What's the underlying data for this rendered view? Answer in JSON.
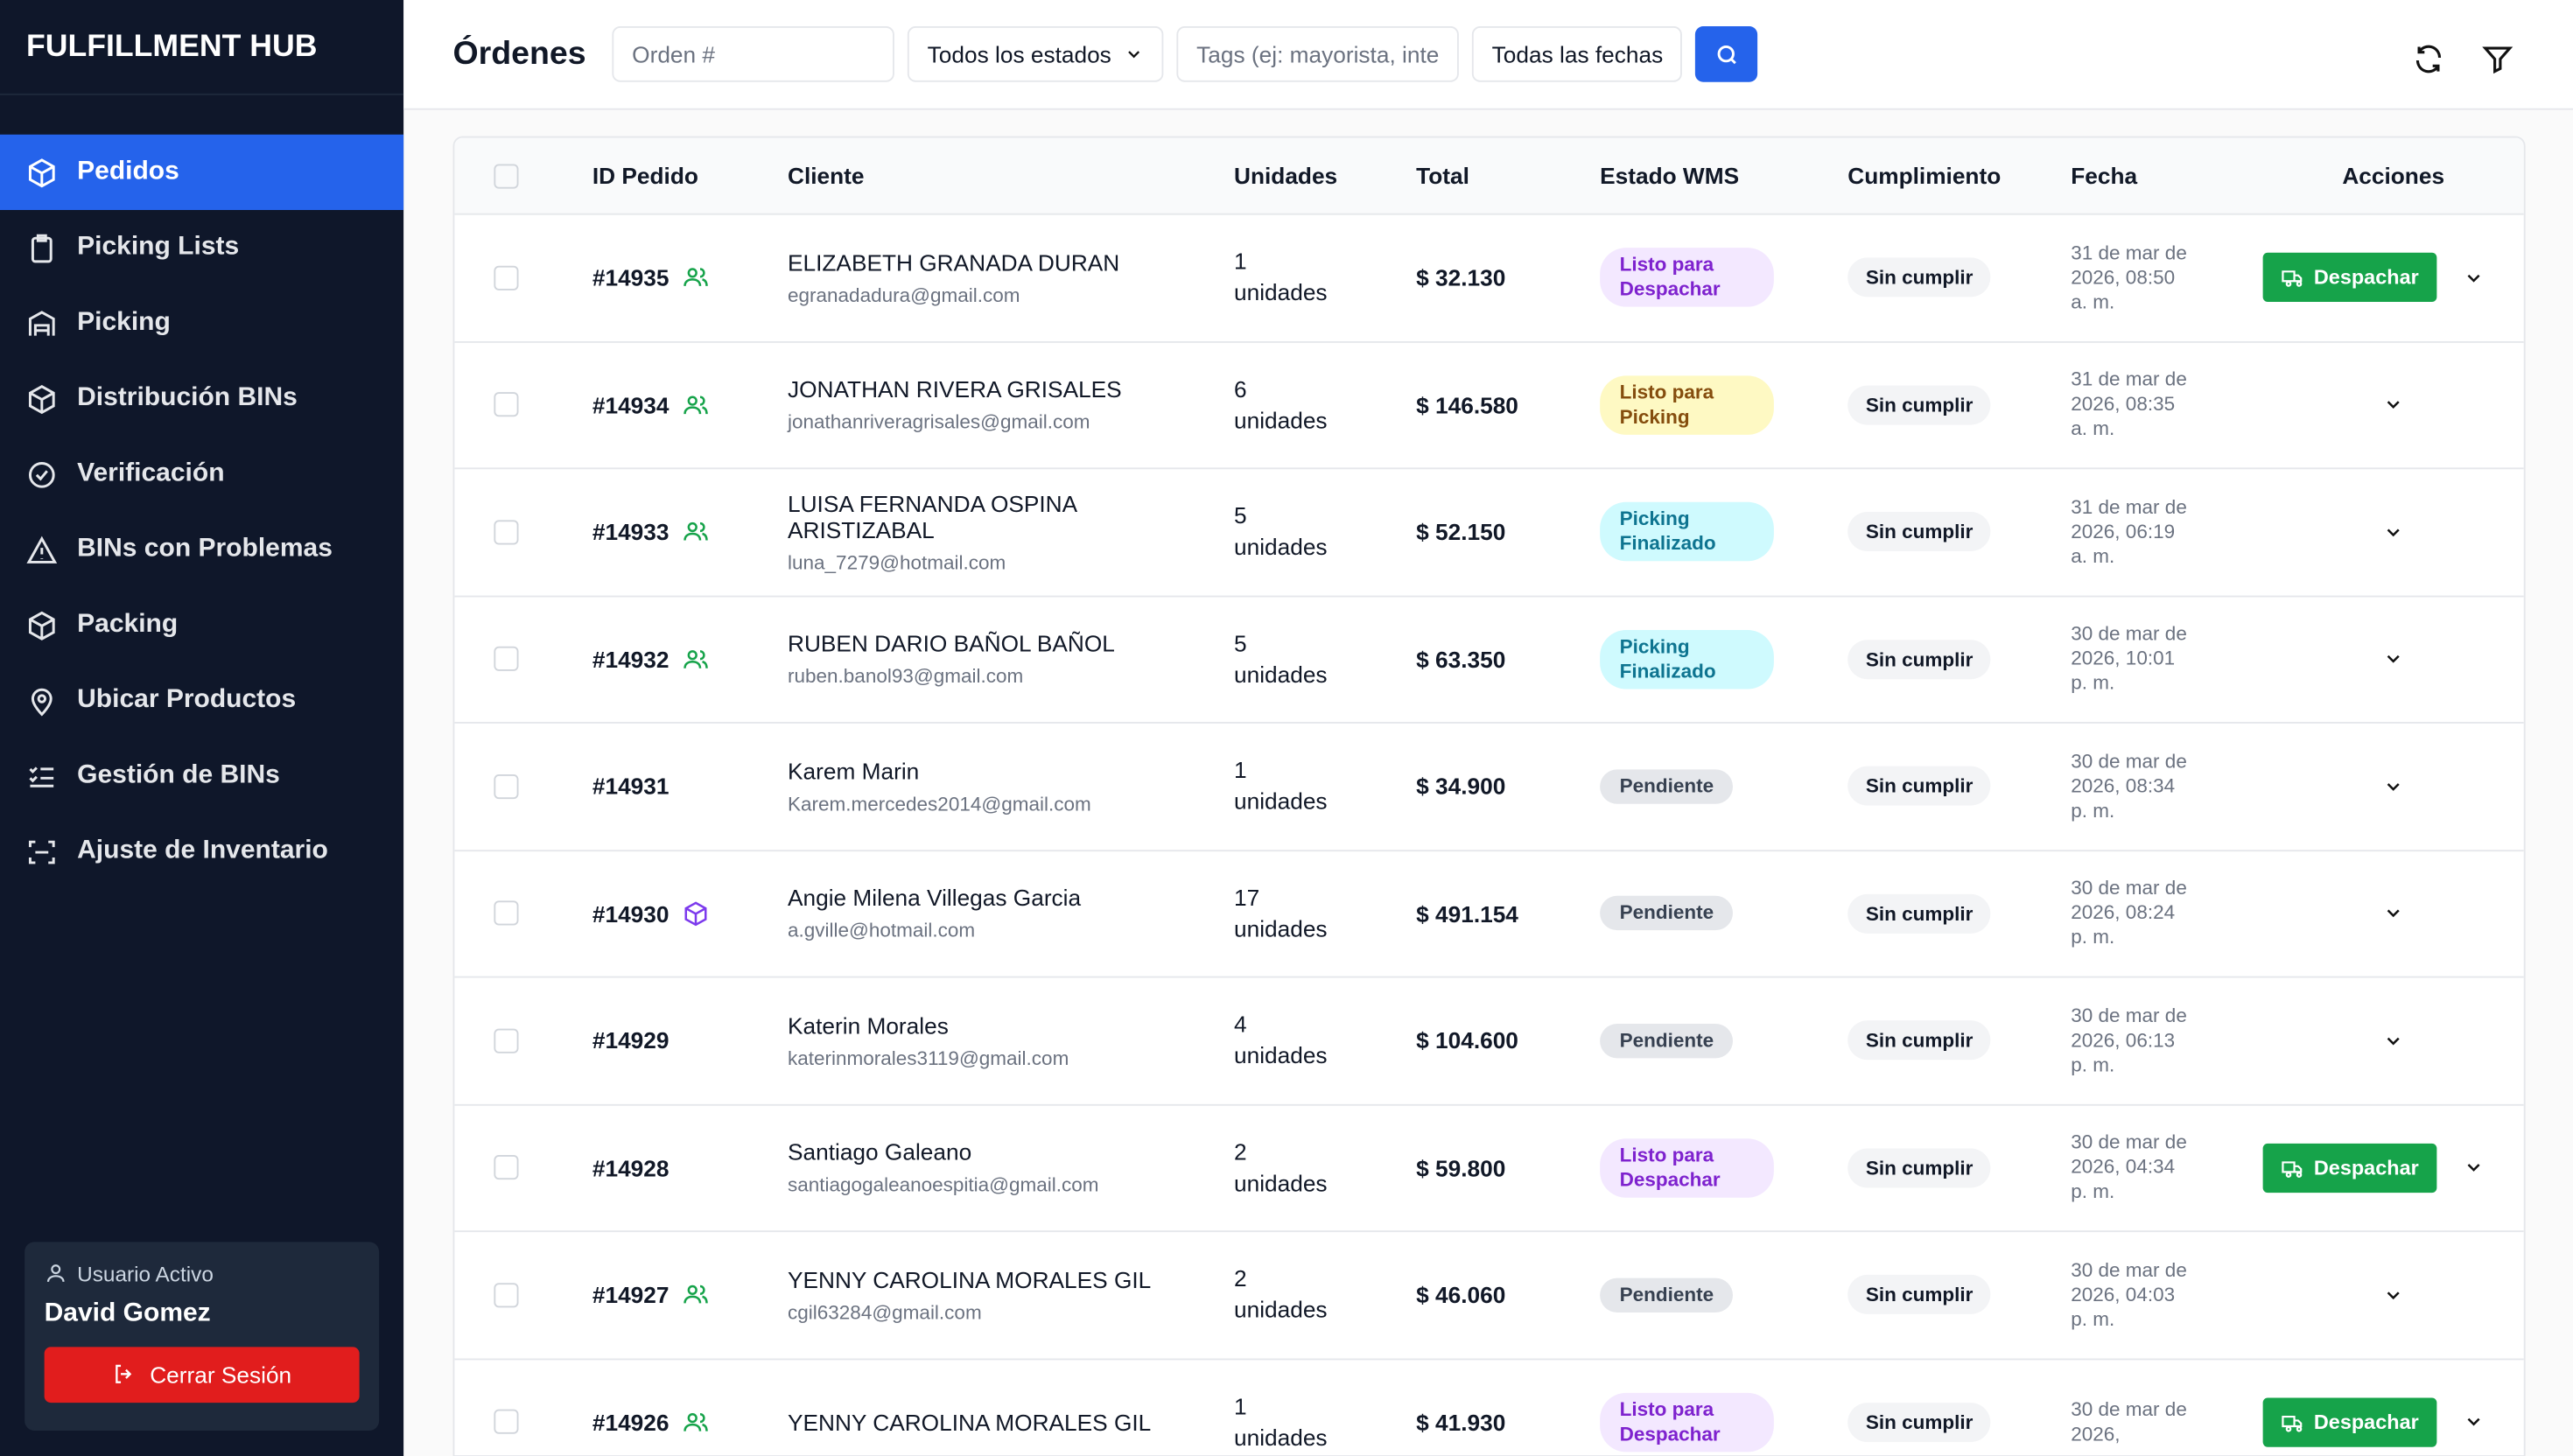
{
  "sidebar": {
    "brand": "FULFILLMENT HUB",
    "nav": [
      "Pedidos",
      "Picking Lists",
      "Picking",
      "Distribución BINs",
      "Verificación",
      "BINs con Problemas",
      "Packing",
      "Ubicar Productos",
      "Gestión de BINs",
      "Ajuste de Inventario"
    ],
    "user_label": "Usuario Activo",
    "user_name": "David Gomez",
    "logout": "Cerrar Sesión"
  },
  "header": {
    "title": "Órdenes",
    "order_placeholder": "Orden #",
    "status_select": "Todos los estados",
    "tags_placeholder": "Tags (ej: mayorista, inte",
    "date_select": "Todas las fechas"
  },
  "table": {
    "columns": [
      "ID Pedido",
      "Cliente",
      "Unidades",
      "Total",
      "Estado WMS",
      "Cumplimiento",
      "Fecha",
      "Acciones"
    ],
    "rows": [
      {
        "id": "#14935",
        "icon": "group",
        "name": "ELIZABETH GRANADA DURAN",
        "email": "egranadadura@gmail.com",
        "units": 1,
        "units_label": "unidades",
        "total": "$ 32.130",
        "status": "Listo para Despachar",
        "status_bg": "#f3e8ff",
        "status_fg": "#7e22ce",
        "fulfillment": "Sin cumplir",
        "date": "31 de mar de 2026, 08:50 a. m.",
        "action": "Despachar"
      },
      {
        "id": "#14934",
        "icon": "group",
        "name": "JONATHAN RIVERA GRISALES",
        "email": "jonathanriveragrisales@gmail.com",
        "units": 6,
        "units_label": "unidades",
        "total": "$ 146.580",
        "status": "Listo para Picking",
        "status_bg": "#fef9c3",
        "status_fg": "#854d0e",
        "fulfillment": "Sin cumplir",
        "date": "31 de mar de 2026, 08:35 a. m."
      },
      {
        "id": "#14933",
        "icon": "group",
        "name": "LUISA FERNANDA OSPINA ARISTIZABAL",
        "email": "luna_7279@hotmail.com",
        "units": 5,
        "units_label": "unidades",
        "total": "$ 52.150",
        "status": "Picking Finalizado",
        "status_bg": "#cffafe",
        "status_fg": "#0e7490",
        "fulfillment": "Sin cumplir",
        "date": "31 de mar de 2026, 06:19 a. m."
      },
      {
        "id": "#14932",
        "icon": "group",
        "name": "RUBEN DARIO BAÑOL BAÑOL",
        "email": "ruben.banol93@gmail.com",
        "units": 5,
        "units_label": "unidades",
        "total": "$ 63.350",
        "status": "Picking Finalizado",
        "status_bg": "#cffafe",
        "status_fg": "#0e7490",
        "fulfillment": "Sin cumplir",
        "date": "30 de mar de 2026, 10:01 p. m."
      },
      {
        "id": "#14931",
        "name": "Karem Marin",
        "email": "Karem.mercedes2014@gmail.com",
        "units": 1,
        "units_label": "unidades",
        "total": "$ 34.900",
        "status": "Pendiente",
        "status_bg": "#e5e7eb",
        "status_fg": "#374151",
        "fulfillment": "Sin cumplir",
        "date": "30 de mar de 2026, 08:34 p. m."
      },
      {
        "id": "#14930",
        "icon": "box",
        "name": "Angie Milena Villegas Garcia",
        "email": "a.gville@hotmail.com",
        "units": 17,
        "units_label": "unidades",
        "total": "$ 491.154",
        "status": "Pendiente",
        "status_bg": "#e5e7eb",
        "status_fg": "#374151",
        "fulfillment": "Sin cumplir",
        "date": "30 de mar de 2026, 08:24 p. m."
      },
      {
        "id": "#14929",
        "name": "Katerin Morales",
        "email": "katerinmorales3119@gmail.com",
        "units": 4,
        "units_label": "unidades",
        "total": "$ 104.600",
        "status": "Pendiente",
        "status_bg": "#e5e7eb",
        "status_fg": "#374151",
        "fulfillment": "Sin cumplir",
        "date": "30 de mar de 2026, 06:13 p. m."
      },
      {
        "id": "#14928",
        "name": "Santiago Galeano",
        "email": "santiagogaleanoespitia@gmail.com",
        "units": 2,
        "units_label": "unidades",
        "total": "$ 59.800",
        "status": "Listo para Despachar",
        "status_bg": "#f3e8ff",
        "status_fg": "#7e22ce",
        "fulfillment": "Sin cumplir",
        "date": "30 de mar de 2026, 04:34 p. m.",
        "action": "Despachar"
      },
      {
        "id": "#14927",
        "icon": "group",
        "name": "YENNY CAROLINA MORALES GIL",
        "email": "cgil63284@gmail.com",
        "units": 2,
        "units_label": "unidades",
        "total": "$ 46.060",
        "status": "Pendiente",
        "status_bg": "#e5e7eb",
        "status_fg": "#374151",
        "fulfillment": "Sin cumplir",
        "date": "30 de mar de 2026, 04:03 p. m."
      },
      {
        "id": "#14926",
        "icon": "group",
        "name": "YENNY CAROLINA MORALES GIL",
        "units": 1,
        "units_label": "unidades",
        "total": "$ 41.930",
        "status": "Listo para Despachar",
        "status_bg": "#f3e8ff",
        "status_fg": "#7e22ce",
        "fulfillment": "Sin cumplir",
        "date": "30 de mar de 2026,",
        "action": "Despachar"
      }
    ]
  }
}
